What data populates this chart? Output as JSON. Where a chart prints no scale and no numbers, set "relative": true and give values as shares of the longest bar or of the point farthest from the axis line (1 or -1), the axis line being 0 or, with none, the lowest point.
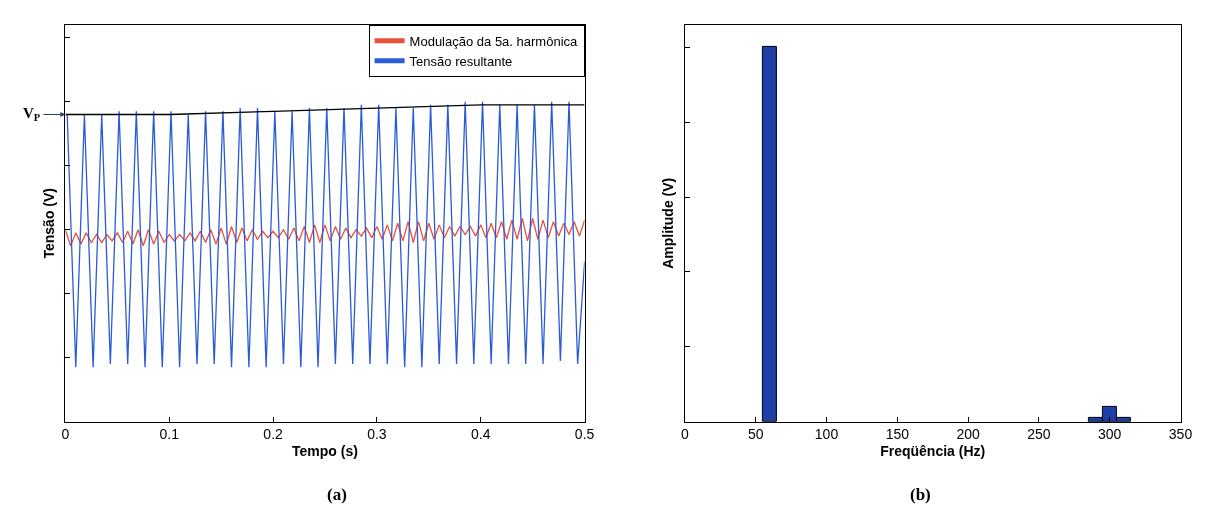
{
  "chart_data": [
    {
      "type": "line",
      "relative": true,
      "xlabel": "Tempo (s)",
      "ylabel": "Tensão (V)",
      "xlim": [
        0,
        0.5
      ],
      "xticks": [
        0,
        0.1,
        0.2,
        0.3,
        0.4,
        0.5
      ],
      "legend": "top right",
      "annotations": [
        {
          "text": "V$_{P}$",
          "x": 0,
          "y": 0.96
        },
        "(a)"
      ],
      "series": [
        {
          "name": "Modulação da 5a. harmônica",
          "color": "#e8503a",
          "x": [
            0,
            0.005,
            0.01,
            0.015,
            0.02,
            0.025,
            0.03,
            0.035,
            0.04,
            0.045,
            0.05,
            0.055,
            0.06,
            0.065,
            0.07,
            0.075,
            0.08,
            0.085,
            0.09,
            0.095,
            0.1,
            0.105,
            0.11,
            0.115,
            0.12,
            0.125,
            0.13,
            0.135,
            0.14,
            0.145,
            0.15,
            0.155,
            0.16,
            0.165,
            0.17,
            0.175,
            0.18,
            0.185,
            0.19,
            0.195,
            0.2,
            0.205,
            0.21,
            0.215,
            0.22,
            0.225,
            0.23,
            0.235,
            0.24,
            0.245,
            0.25,
            0.255,
            0.26,
            0.265,
            0.27,
            0.275,
            0.28,
            0.285,
            0.29,
            0.295,
            0.3,
            0.305,
            0.31,
            0.315,
            0.32,
            0.325,
            0.33,
            0.335,
            0.34,
            0.345,
            0.35,
            0.355,
            0.36,
            0.365,
            0.37,
            0.375,
            0.38,
            0.385,
            0.39,
            0.395,
            0.4,
            0.405,
            0.41,
            0.415,
            0.42,
            0.425,
            0.43,
            0.435,
            0.44,
            0.445,
            0.45,
            0.455,
            0.46,
            0.465,
            0.47,
            0.475,
            0.48,
            0.485,
            0.49,
            0.495,
            0.5
          ],
          "values": [
            0.6,
            0.55,
            0.59,
            0.555,
            0.59,
            0.56,
            0.585,
            0.56,
            0.585,
            0.565,
            0.59,
            0.56,
            0.595,
            0.555,
            0.6,
            0.55,
            0.6,
            0.555,
            0.595,
            0.56,
            0.585,
            0.565,
            0.585,
            0.565,
            0.59,
            0.565,
            0.595,
            0.56,
            0.6,
            0.555,
            0.605,
            0.555,
            0.61,
            0.56,
            0.605,
            0.565,
            0.6,
            0.57,
            0.595,
            0.575,
            0.595,
            0.575,
            0.6,
            0.57,
            0.605,
            0.565,
            0.61,
            0.56,
            0.615,
            0.56,
            0.615,
            0.565,
            0.61,
            0.57,
            0.605,
            0.575,
            0.6,
            0.58,
            0.605,
            0.575,
            0.61,
            0.57,
            0.615,
            0.565,
            0.62,
            0.565,
            0.625,
            0.56,
            0.625,
            0.565,
            0.62,
            0.57,
            0.615,
            0.575,
            0.61,
            0.58,
            0.61,
            0.585,
            0.61,
            0.58,
            0.615,
            0.575,
            0.62,
            0.575,
            0.625,
            0.57,
            0.63,
            0.57,
            0.635,
            0.565,
            0.635,
            0.57,
            0.63,
            0.575,
            0.625,
            0.58,
            0.62,
            0.585,
            0.625,
            0.58,
            0.63
          ]
        },
        {
          "name": "Tensão resultante",
          "color": "#2a5bd7",
          "x": [
            0.0017,
            0.01,
            0.0183,
            0.0267,
            0.035,
            0.0433,
            0.0517,
            0.06,
            0.0683,
            0.0767,
            0.085,
            0.0933,
            0.1017,
            0.11,
            0.1183,
            0.1267,
            0.135,
            0.1433,
            0.1517,
            0.16,
            0.1683,
            0.1767,
            0.185,
            0.1933,
            0.2017,
            0.21,
            0.2183,
            0.2267,
            0.235,
            0.2433,
            0.2517,
            0.26,
            0.2683,
            0.2767,
            0.285,
            0.2933,
            0.3017,
            0.31,
            0.3183,
            0.3267,
            0.335,
            0.3433,
            0.3517,
            0.36,
            0.3683,
            0.3767,
            0.385,
            0.3933,
            0.4017,
            0.41,
            0.4183,
            0.4267,
            0.435,
            0.4433,
            0.4517,
            0.46,
            0.4683,
            0.4767,
            0.485,
            0.4933,
            0.5
          ],
          "values": [
            0.96,
            0.17,
            0.96,
            0.17,
            0.96,
            0.18,
            0.97,
            0.18,
            0.97,
            0.17,
            0.97,
            0.17,
            0.97,
            0.17,
            0.96,
            0.18,
            0.97,
            0.18,
            0.97,
            0.17,
            0.98,
            0.17,
            0.98,
            0.17,
            0.97,
            0.18,
            0.97,
            0.17,
            0.98,
            0.17,
            0.98,
            0.18,
            0.98,
            0.18,
            0.99,
            0.18,
            0.99,
            0.18,
            0.98,
            0.17,
            0.98,
            0.17,
            0.99,
            0.18,
            0.99,
            0.18,
            1.0,
            0.18,
            1.0,
            0.18,
            0.99,
            0.18,
            0.99,
            0.18,
            0.99,
            0.18,
            1.0,
            0.19,
            1.0,
            0.18,
            0.5
          ]
        },
        {
          "color": "#000000",
          "x": [
            0,
            0.1,
            0.2,
            0.3,
            0.4,
            0.5
          ],
          "values": [
            0.96,
            0.96,
            0.97,
            0.98,
            0.99,
            0.99
          ]
        }
      ]
    },
    {
      "type": "bar",
      "relative": true,
      "xlabel": "Freqüência (Hz)",
      "ylabel": "Amplitude (V)",
      "xlim": [
        0,
        350
      ],
      "xticks": [
        0,
        50,
        100,
        150,
        200,
        250,
        300,
        350
      ],
      "legend": false,
      "annotations": [
        "(b)"
      ],
      "x": [
        60,
        290,
        300,
        310
      ],
      "values": [
        1,
        0.01,
        0.04,
        0.01
      ],
      "color": "#1f3fa8"
    }
  ]
}
